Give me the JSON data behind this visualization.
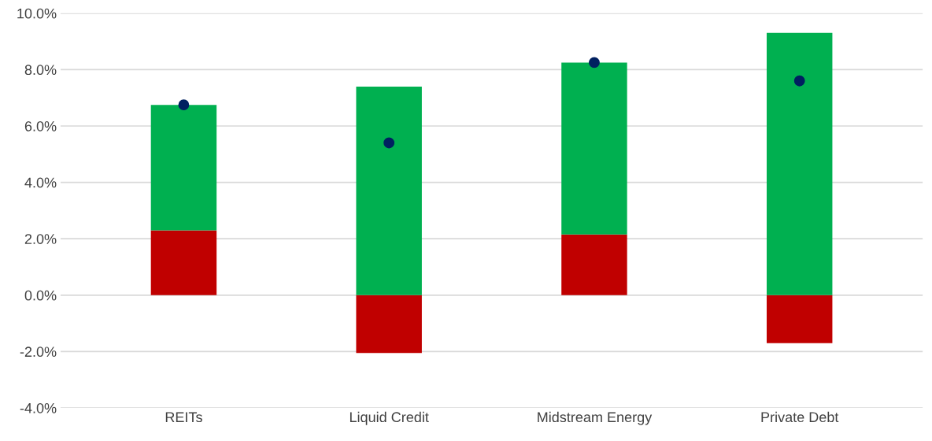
{
  "chart_data": {
    "type": "bar",
    "categories": [
      "REITs",
      "Liquid Credit",
      "Midstream Energy",
      "Private Debt"
    ],
    "series": [
      {
        "color": "#c00000",
        "base": [
          0,
          0,
          0,
          0
        ],
        "values": [
          2.3,
          -2.05,
          2.15,
          -1.7
        ]
      },
      {
        "color": "#00b050",
        "base": [
          2.3,
          0,
          2.15,
          0
        ],
        "values": [
          4.45,
          7.4,
          6.1,
          9.3
        ]
      },
      {
        "type": "scatter",
        "color": "#002060",
        "x": [
          "REITs",
          "Liquid Credit",
          "Midstream Energy",
          "Private Debt"
        ],
        "values": [
          6.75,
          5.4,
          8.25,
          7.6
        ]
      }
    ],
    "ylim": [
      -4,
      10
    ],
    "yticks": [
      {
        "value": -4,
        "label": "-4.0%"
      },
      {
        "value": -2,
        "label": "-2.0%"
      },
      {
        "value": 0,
        "label": "0.0%"
      },
      {
        "value": 2,
        "label": "2.0%"
      },
      {
        "value": 4,
        "label": "4.0%"
      },
      {
        "value": 6,
        "label": "6.0%"
      },
      {
        "value": 8,
        "label": "8.0%"
      },
      {
        "value": 10,
        "label": "10.0%"
      }
    ],
    "grid": "y",
    "marker": "circle",
    "legend": false
  }
}
